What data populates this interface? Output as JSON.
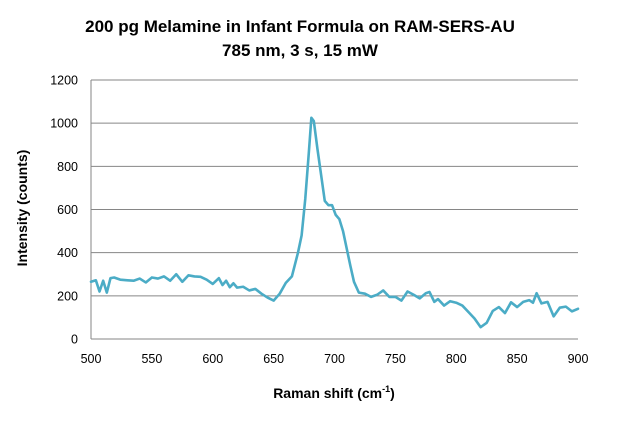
{
  "chart_data": {
    "type": "line",
    "title": "200 pg Melamine in Infant Formula on RAM-SERS-AU",
    "subtitle": "785 nm, 3 s, 15 mW",
    "xlabel_main": "Raman shift (cm",
    "xlabel_sup": "-1",
    "xlabel_close": ")",
    "ylabel": "Intensity (counts)",
    "xlim": [
      500,
      900
    ],
    "ylim": [
      0,
      1200
    ],
    "xticks": [
      500,
      550,
      600,
      650,
      700,
      750,
      800,
      850,
      900
    ],
    "yticks": [
      0,
      200,
      400,
      600,
      800,
      1000,
      1200
    ],
    "grid": "horizontal",
    "legend": "none",
    "series_color": "#4BACC6",
    "series": [
      {
        "x": [
          500,
          504,
          507,
          510,
          513,
          516,
          519,
          524,
          530,
          535,
          540,
          545,
          550,
          555,
          560,
          565,
          570,
          575,
          580,
          585,
          590,
          595,
          600,
          605,
          608,
          611,
          614,
          617,
          620,
          625,
          630,
          635,
          640,
          645,
          650,
          655,
          660,
          665,
          670,
          673,
          676,
          679,
          681,
          683,
          686,
          689,
          692,
          695,
          698,
          701,
          704,
          707,
          710,
          713,
          716,
          720,
          725,
          730,
          735,
          740,
          745,
          750,
          755,
          760,
          765,
          770,
          775,
          778,
          782,
          785,
          790,
          795,
          800,
          805,
          810,
          815,
          820,
          825,
          830,
          835,
          840,
          845,
          850,
          855,
          860,
          863,
          866,
          870,
          875,
          880,
          885,
          890,
          895,
          900
        ],
        "y": [
          265,
          272,
          220,
          270,
          215,
          282,
          285,
          275,
          272,
          270,
          280,
          262,
          285,
          280,
          290,
          270,
          300,
          265,
          295,
          290,
          288,
          275,
          255,
          282,
          250,
          270,
          240,
          258,
          238,
          242,
          225,
          232,
          210,
          192,
          178,
          210,
          260,
          290,
          400,
          480,
          650,
          870,
          1025,
          1010,
          880,
          760,
          640,
          620,
          620,
          575,
          555,
          500,
          420,
          340,
          265,
          215,
          210,
          195,
          205,
          225,
          195,
          195,
          178,
          220,
          205,
          188,
          212,
          218,
          172,
          185,
          155,
          175,
          168,
          155,
          125,
          95,
          55,
          75,
          130,
          148,
          120,
          170,
          148,
          172,
          180,
          168,
          212,
          165,
          172,
          105,
          145,
          150,
          128,
          140
        ]
      }
    ]
  }
}
